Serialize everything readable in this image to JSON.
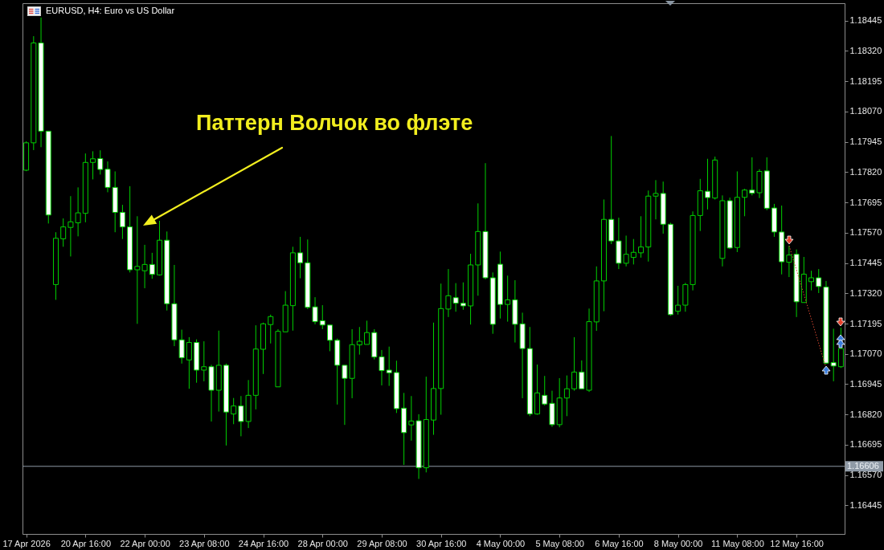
{
  "chart_data": {
    "type": "candlestick",
    "title": "EURUSD, H4: Euro vs US Dollar",
    "annotations": [
      "Паттерн Волчок во флэте"
    ],
    "categories": [
      "17 Apr 2026",
      null,
      null,
      null,
      null,
      null,
      null,
      null,
      "20 Apr 16:00",
      null,
      null,
      null,
      null,
      null,
      null,
      null,
      "22 Apr 00:00",
      null,
      null,
      null,
      null,
      null,
      null,
      null,
      "23 Apr 08:00",
      null,
      null,
      null,
      null,
      null,
      null,
      null,
      "24 Apr 16:00",
      null,
      null,
      null,
      null,
      null,
      null,
      null,
      "28 Apr 00:00",
      null,
      null,
      null,
      null,
      null,
      null,
      null,
      "29 Apr 08:00",
      null,
      null,
      null,
      null,
      null,
      null,
      null,
      "30 Apr 16:00",
      null,
      null,
      null,
      null,
      null,
      null,
      null,
      "4 May 00:00",
      null,
      null,
      null,
      null,
      null,
      null,
      null,
      "5 May 08:00",
      null,
      null,
      null,
      null,
      null,
      null,
      null,
      "6 May 16:00",
      null,
      null,
      null,
      null,
      null,
      null,
      null,
      "8 May 00:00",
      null,
      null,
      null,
      null,
      null,
      null,
      null,
      "11 May 08:00",
      null,
      null,
      null,
      null,
      null,
      null,
      null,
      "12 May 16:00",
      null,
      null,
      null,
      null,
      null,
      null
    ],
    "ohlc": [
      [
        1.17828,
        1.17947,
        1.17824,
        1.17941
      ],
      [
        1.17941,
        1.18381,
        1.17911,
        1.18353
      ],
      [
        1.18353,
        1.18458,
        1.17923,
        1.17989
      ],
      [
        1.17989,
        1.17989,
        1.17608,
        1.17643
      ],
      [
        1.17356,
        1.17572,
        1.17293,
        1.17547
      ],
      [
        1.17545,
        1.17629,
        1.17512,
        1.17594
      ],
      [
        1.17592,
        1.17721,
        1.17472,
        1.17615
      ],
      [
        1.17611,
        1.17757,
        1.17555,
        1.17652
      ],
      [
        1.1765,
        1.17897,
        1.17613,
        1.1786
      ],
      [
        1.1786,
        1.17906,
        1.1779,
        1.17875
      ],
      [
        1.17876,
        1.1791,
        1.1781,
        1.17831
      ],
      [
        1.17832,
        1.17864,
        1.17737,
        1.17757
      ],
      [
        1.17757,
        1.17823,
        1.17572,
        1.17654
      ],
      [
        1.17654,
        1.17685,
        1.17544,
        1.17594
      ],
      [
        1.17594,
        1.17762,
        1.17406,
        1.17417
      ],
      [
        1.17417,
        1.17638,
        1.17194,
        1.17431
      ],
      [
        1.17413,
        1.1752,
        1.17341,
        1.17439
      ],
      [
        1.17439,
        1.17487,
        1.1738,
        1.17398
      ],
      [
        1.17396,
        1.17619,
        1.17393,
        1.17539
      ],
      [
        1.17539,
        1.17575,
        1.17249,
        1.17277
      ],
      [
        1.17277,
        1.17437,
        1.17102,
        1.17128
      ],
      [
        1.17128,
        1.1717,
        1.1703,
        1.17054
      ],
      [
        1.17045,
        1.17139,
        1.16926,
        1.17117
      ],
      [
        1.17117,
        1.1713,
        1.16951,
        1.17003
      ],
      [
        1.17003,
        1.17122,
        1.16957,
        1.17017
      ],
      [
        1.17017,
        1.17025,
        1.16791,
        1.1692
      ],
      [
        1.1692,
        1.17166,
        1.16832,
        1.17023
      ],
      [
        1.17023,
        1.1703,
        1.16692,
        1.1683
      ],
      [
        1.16822,
        1.16888,
        1.1678,
        1.16855
      ],
      [
        1.16855,
        1.16896,
        1.1673,
        1.16791
      ],
      [
        1.16791,
        1.16962,
        1.16764,
        1.16899
      ],
      [
        1.16899,
        1.17188,
        1.16841,
        1.1709
      ],
      [
        1.17089,
        1.17199,
        1.16987,
        1.17194
      ],
      [
        1.17191,
        1.17232,
        1.17113,
        1.17224
      ],
      [
        1.16934,
        1.17172,
        1.16934,
        1.17163
      ],
      [
        1.17161,
        1.17329,
        1.17161,
        1.17271
      ],
      [
        1.17269,
        1.17512,
        1.17166,
        1.17487
      ],
      [
        1.17487,
        1.17553,
        1.17382,
        1.17446
      ],
      [
        1.17446,
        1.17542,
        1.17255,
        1.17262
      ],
      [
        1.17264,
        1.17304,
        1.17192,
        1.17203
      ],
      [
        1.17207,
        1.17271,
        1.17172,
        1.17189
      ],
      [
        1.17189,
        1.17189,
        1.17081,
        1.17126
      ],
      [
        1.17126,
        1.17133,
        1.16861,
        1.17023
      ],
      [
        1.17023,
        1.17023,
        1.16777,
        1.16969
      ],
      [
        1.16969,
        1.17172,
        1.16887,
        1.17108
      ],
      [
        1.17107,
        1.17181,
        1.17067,
        1.17122
      ],
      [
        1.17109,
        1.17207,
        1.17109,
        1.17158
      ],
      [
        1.17158,
        1.17172,
        1.17047,
        1.17057
      ],
      [
        1.17058,
        1.17086,
        1.1694,
        1.17001
      ],
      [
        1.17003,
        1.171,
        1.16938,
        1.16992
      ],
      [
        1.16993,
        1.17042,
        1.16826,
        1.16844
      ],
      [
        1.16846,
        1.16909,
        1.16612,
        1.16745
      ],
      [
        1.16777,
        1.16896,
        1.16712,
        1.16793
      ],
      [
        1.16794,
        1.16821,
        1.16554,
        1.166
      ],
      [
        1.166,
        1.16976,
        1.16581,
        1.16799
      ],
      [
        1.16797,
        1.17199,
        1.16736,
        1.16927
      ],
      [
        1.16927,
        1.1736,
        1.16819,
        1.17257
      ],
      [
        1.17255,
        1.1742,
        1.17222,
        1.1731
      ],
      [
        1.17302,
        1.17362,
        1.17244,
        1.17279
      ],
      [
        1.17279,
        1.17365,
        1.17252,
        1.17268
      ],
      [
        1.17268,
        1.17483,
        1.17191,
        1.17437
      ],
      [
        1.17437,
        1.17691,
        1.1731,
        1.17575
      ],
      [
        1.17575,
        1.17857,
        1.17378,
        1.17384
      ],
      [
        1.17384,
        1.17406,
        1.17153,
        1.17192
      ],
      [
        1.1744,
        1.17492,
        1.17216,
        1.17274
      ],
      [
        1.17274,
        1.17393,
        1.17203,
        1.17293
      ],
      [
        1.17293,
        1.17374,
        1.17117,
        1.17192
      ],
      [
        1.17194,
        1.1724,
        1.16887,
        1.17092
      ],
      [
        1.17092,
        1.17181,
        1.16813,
        1.16822
      ],
      [
        1.16822,
        1.17026,
        1.16819,
        1.16909
      ],
      [
        1.16899,
        1.16979,
        1.16857,
        1.16863
      ],
      [
        1.16866,
        1.16918,
        1.16769,
        1.16778
      ],
      [
        1.16778,
        1.1697,
        1.16767,
        1.16888
      ],
      [
        1.16888,
        1.16981,
        1.16813,
        1.16926
      ],
      [
        1.16926,
        1.17139,
        1.16918,
        1.16995
      ],
      [
        1.16995,
        1.17043,
        1.16926,
        1.16926
      ],
      [
        1.1692,
        1.17257,
        1.16913,
        1.17203
      ],
      [
        1.17202,
        1.17431,
        1.17165,
        1.17371
      ],
      [
        1.17371,
        1.17707,
        1.17246,
        1.17625
      ],
      [
        1.17625,
        1.17969,
        1.17523,
        1.17536
      ],
      [
        1.17536,
        1.17632,
        1.1742,
        1.17444
      ],
      [
        1.17444,
        1.17558,
        1.17431,
        1.17481
      ],
      [
        1.17468,
        1.17544,
        1.17439,
        1.17489
      ],
      [
        1.17487,
        1.17638,
        1.17467,
        1.17511
      ],
      [
        1.17511,
        1.17744,
        1.17451,
        1.17721
      ],
      [
        1.17721,
        1.17787,
        1.17625,
        1.17732
      ],
      [
        1.17732,
        1.17781,
        1.17566,
        1.17605
      ],
      [
        1.17605,
        1.17611,
        1.17227,
        1.17232
      ],
      [
        1.17246,
        1.17351,
        1.17232,
        1.17271
      ],
      [
        1.17271,
        1.17363,
        1.17244,
        1.17356
      ],
      [
        1.17356,
        1.17658,
        1.17332,
        1.17641
      ],
      [
        1.17641,
        1.17792,
        1.17577,
        1.17743
      ],
      [
        1.17741,
        1.17875,
        1.17666,
        1.17715
      ],
      [
        1.17713,
        1.17884,
        1.17707,
        1.1787
      ],
      [
        1.17464,
        1.17724,
        1.17431,
        1.17702
      ],
      [
        1.17702,
        1.17715,
        1.17503,
        1.17507
      ],
      [
        1.17509,
        1.17823,
        1.1749,
        1.17716
      ],
      [
        1.17716,
        1.17751,
        1.17638,
        1.17746
      ],
      [
        1.17746,
        1.17881,
        1.17724,
        1.17733
      ],
      [
        1.17735,
        1.17832,
        1.17713,
        1.17823
      ],
      [
        1.17825,
        1.17881,
        1.17663,
        1.17671
      ],
      [
        1.17672,
        1.17689,
        1.17553,
        1.17573
      ],
      [
        1.17573,
        1.17682,
        1.17398,
        1.1745
      ],
      [
        1.17448,
        1.17516,
        1.17387,
        1.17478
      ],
      [
        1.17481,
        1.17501,
        1.17222,
        1.17285
      ],
      [
        1.17282,
        1.1747,
        1.17282,
        1.17399
      ],
      [
        1.17368,
        1.17413,
        1.17332,
        1.17384
      ],
      [
        1.17384,
        1.1742,
        1.17321,
        1.17348
      ],
      [
        1.17346,
        1.17371,
        1.17028,
        1.17032
      ],
      [
        1.17034,
        1.17174,
        1.16957,
        1.1702
      ],
      [
        1.17017,
        1.17178,
        1.17012,
        1.17092
      ]
    ],
    "color": "#00d000",
    "colors": [
      "#000000",
      "#000000",
      "#ffffff",
      "#ffffff",
      "#000000",
      "#000000",
      "#000000",
      "#000000",
      "#000000",
      "#000000",
      "#ffffff",
      "#ffffff",
      "#ffffff",
      "#ffffff",
      "#ffffff",
      "#000000",
      "#000000",
      "#ffffff",
      "#000000",
      "#ffffff",
      "#ffffff",
      "#ffffff",
      "#000000",
      "#ffffff",
      "#000000",
      "#ffffff",
      "#000000",
      "#ffffff",
      "#000000",
      "#ffffff",
      "#000000",
      "#000000",
      "#000000",
      "#000000",
      "#000000",
      "#000000",
      "#000000",
      "#ffffff",
      "#ffffff",
      "#ffffff",
      "#ffffff",
      "#ffffff",
      "#ffffff",
      "#ffffff",
      "#000000",
      "#000000",
      "#000000",
      "#ffffff",
      "#ffffff",
      "#ffffff",
      "#ffffff",
      "#ffffff",
      "#000000",
      "#ffffff",
      "#000000",
      "#000000",
      "#000000",
      "#000000",
      "#ffffff",
      "#ffffff",
      "#000000",
      "#000000",
      "#ffffff",
      "#ffffff",
      "#ffffff",
      "#000000",
      "#ffffff",
      "#ffffff",
      "#ffffff",
      "#000000",
      "#ffffff",
      "#ffffff",
      "#000000",
      "#000000",
      "#000000",
      "#ffffff",
      "#000000",
      "#000000",
      "#000000",
      "#ffffff",
      "#ffffff",
      "#000000",
      "#000000",
      "#000000",
      "#000000",
      "#000000",
      "#ffffff",
      "#ffffff",
      "#000000",
      "#000000",
      "#000000",
      "#000000",
      "#ffffff",
      "#000000",
      "#000000",
      "#ffffff",
      "#000000",
      "#000000",
      "#ffffff",
      "#000000",
      "#ffffff",
      "#ffffff",
      "#ffffff",
      "#000000",
      "#ffffff",
      "#000000",
      "#000000",
      "#ffffff",
      "#ffffff",
      "#ffffff",
      "#000000"
    ],
    "ylim": [
      1.16327,
      1.18517
    ],
    "yticks": [
      1.16445,
      {
        "value": 1.1657,
        "label": "1.16570"
      },
      1.16695,
      {
        "value": 1.1682,
        "label": "1.16820"
      },
      1.16945,
      {
        "value": 1.1707,
        "label": "1.17070"
      },
      1.17195,
      {
        "value": 1.1732,
        "label": "1.17320"
      },
      1.17445,
      {
        "value": 1.1757,
        "label": "1.17570"
      },
      1.17695,
      {
        "value": 1.1782,
        "label": "1.17820"
      },
      1.17945,
      {
        "value": 1.1807,
        "label": "1.18070"
      },
      1.18195,
      {
        "value": 1.1832,
        "label": "1.18320"
      },
      1.18445
    ],
    "ref_lines": [
      {
        "axis": "y",
        "value": 1.16606,
        "label": "1.16606",
        "color": "#8f9aa6"
      }
    ]
  }
}
